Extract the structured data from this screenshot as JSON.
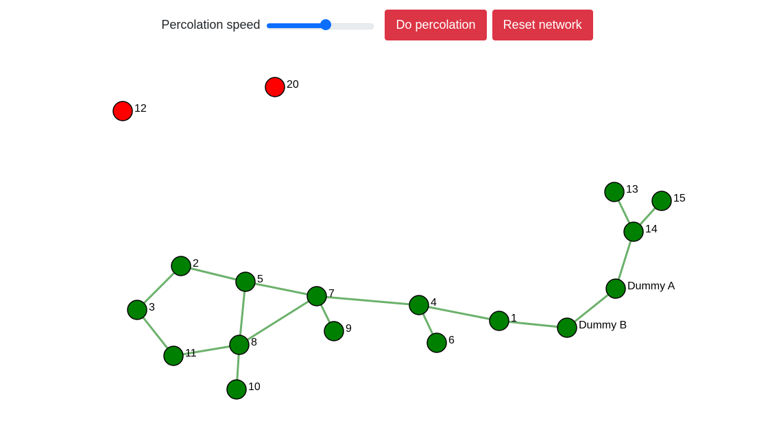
{
  "controls": {
    "speed_label": "Percolation speed",
    "speed_value": 0.55,
    "percolate_label": "Do percolation",
    "reset_label": "Reset network"
  },
  "colors": {
    "active_node": "#008000",
    "removed_node": "#ff0000",
    "edge": "#6cb16c",
    "button": "#dc3545",
    "slider_accent": "#0d6efd"
  },
  "network": {
    "nodes": [
      {
        "id": "20",
        "label": "20",
        "state": "removed"
      },
      {
        "id": "12",
        "label": "12",
        "state": "removed"
      },
      {
        "id": "13",
        "label": "13",
        "state": "active"
      },
      {
        "id": "15",
        "label": "15",
        "state": "active"
      },
      {
        "id": "14",
        "label": "14",
        "state": "active"
      },
      {
        "id": "dummy-a",
        "label": "Dummy A",
        "state": "active"
      },
      {
        "id": "dummy-b",
        "label": "Dummy B",
        "state": "active"
      },
      {
        "id": "1",
        "label": "1",
        "state": "active"
      },
      {
        "id": "4",
        "label": "4",
        "state": "active"
      },
      {
        "id": "6",
        "label": "6",
        "state": "active"
      },
      {
        "id": "7",
        "label": "7",
        "state": "active"
      },
      {
        "id": "9",
        "label": "9",
        "state": "active"
      },
      {
        "id": "5",
        "label": "5",
        "state": "active"
      },
      {
        "id": "2",
        "label": "2",
        "state": "active"
      },
      {
        "id": "3",
        "label": "3",
        "state": "active"
      },
      {
        "id": "11",
        "label": "11",
        "state": "active"
      },
      {
        "id": "8",
        "label": "8",
        "state": "active"
      },
      {
        "id": "10",
        "label": "10",
        "state": "active"
      }
    ],
    "edges": [
      [
        "13",
        "14"
      ],
      [
        "15",
        "14"
      ],
      [
        "14",
        "dummy-a"
      ],
      [
        "dummy-a",
        "dummy-b"
      ],
      [
        "dummy-b",
        "1"
      ],
      [
        "1",
        "4"
      ],
      [
        "4",
        "6"
      ],
      [
        "4",
        "7"
      ],
      [
        "7",
        "9"
      ],
      [
        "7",
        "5"
      ],
      [
        "7",
        "8"
      ],
      [
        "5",
        "2"
      ],
      [
        "5",
        "8"
      ],
      [
        "2",
        "3"
      ],
      [
        "3",
        "11"
      ],
      [
        "11",
        "8"
      ],
      [
        "8",
        "10"
      ]
    ]
  }
}
